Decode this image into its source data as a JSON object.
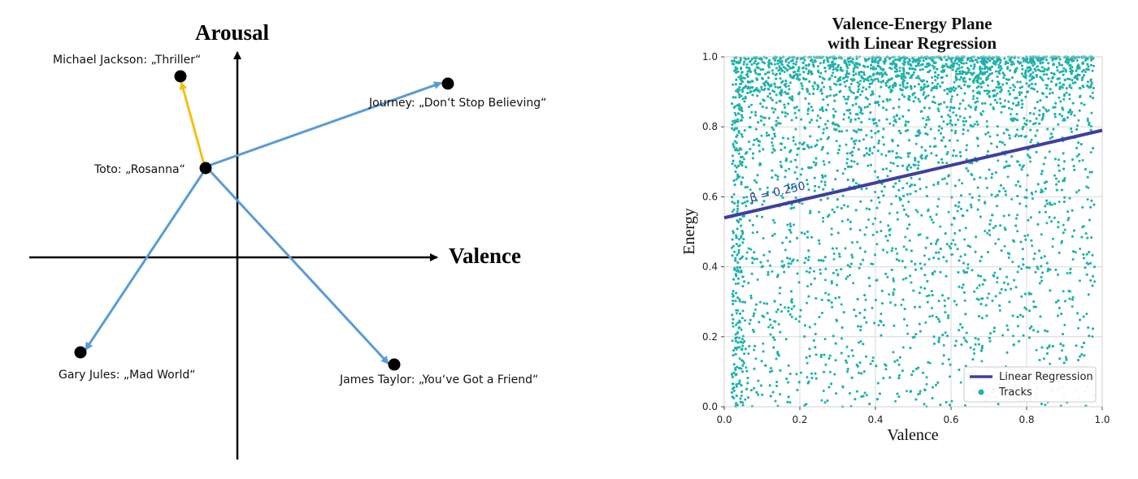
{
  "diagram": {
    "y_axis_label": "Arousal",
    "x_axis_label": "Valence",
    "points": [
      {
        "id": "thriller",
        "label": "Michael Jackson: „Thriller“"
      },
      {
        "id": "journey",
        "label": "Journey: „Don‘t Stop Believing“"
      },
      {
        "id": "rosanna",
        "label": "Toto: „Rosanna“"
      },
      {
        "id": "madworld",
        "label": "Gary Jules: „Mad World“"
      },
      {
        "id": "friend",
        "label": "James Taylor: „You‘ve Got a Friend“"
      }
    ],
    "colors": {
      "arrow_blue": "#5b9bd5",
      "arrow_yellow": "#f5c010",
      "point": "#000000"
    }
  },
  "chart_data": {
    "type": "scatter",
    "title": "Valence-Energy Plane\nwith Linear Regression",
    "title_lines": [
      "Valence-Energy Plane",
      "with Linear Regression"
    ],
    "xlabel": "Valence",
    "ylabel": "Energy",
    "xlim": [
      0.0,
      1.0
    ],
    "ylim": [
      0.0,
      1.0
    ],
    "x_ticks": [
      "0.0",
      "0.2",
      "0.4",
      "0.6",
      "0.8",
      "1.0"
    ],
    "y_ticks": [
      "0.0",
      "0.2",
      "0.4",
      "0.6",
      "0.8",
      "1.0"
    ],
    "grid": true,
    "legend_placement": "bottom-right",
    "series": [
      {
        "name": "Tracks",
        "kind": "scatter",
        "color": "#20b2aa",
        "distribution_note_density": "dense near energy 1.0 and at low valence; sparse at high valence low energy"
      },
      {
        "name": "Linear Regression",
        "kind": "line",
        "color": "#3f3f9f",
        "intercept": 0.54,
        "slope": 0.25
      }
    ],
    "annotation": "β = 0.250"
  }
}
